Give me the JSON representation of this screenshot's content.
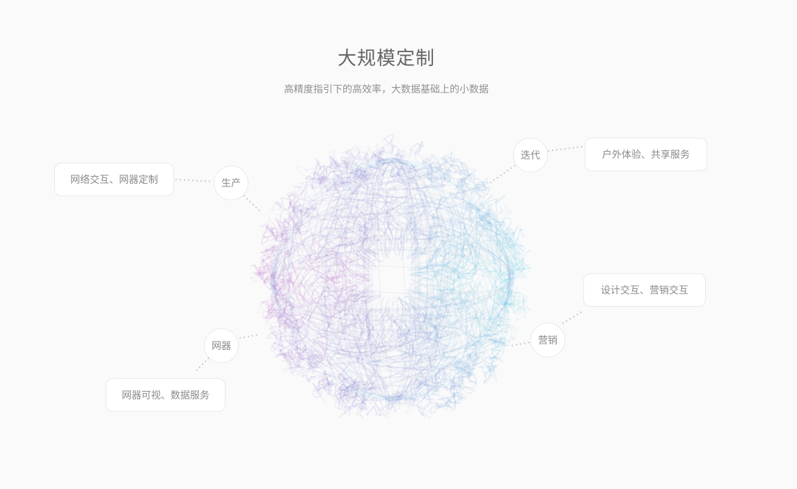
{
  "page": {
    "title": "大规模定制",
    "subtitle": "高精度指引下的高效率，大数据基础上的小数据"
  },
  "nodes": [
    {
      "circle_label": "生产",
      "box_label": "网络交互、网器定制"
    },
    {
      "circle_label": "迭代",
      "box_label": "户外体验、共享服务"
    },
    {
      "circle_label": "营销",
      "box_label": "设计交互、营销交互"
    },
    {
      "circle_label": "网器",
      "box_label": "网器可视、数据服务"
    }
  ],
  "colors": {
    "background": "#fafafa",
    "title_text": "#666666",
    "subtitle_text": "#909090",
    "label_text": "#8a8a8a",
    "box_background": "#ffffff",
    "box_border": "#e9e9e9",
    "connector_dot": "#c9c9c9",
    "sphere_magenta": "#b65ac4",
    "sphere_cyan": "#56cee4",
    "sphere_violet": "#6870cd",
    "sphere_indigo": "#646aaf"
  }
}
